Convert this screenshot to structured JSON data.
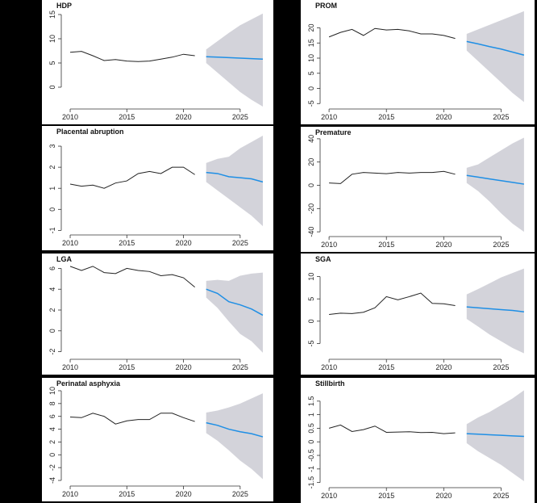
{
  "colors": {
    "observed": "#222222",
    "forecast": "#1f8fe5",
    "band": "#d3d3da",
    "axis": "#333333"
  },
  "chart_data": [
    {
      "type": "line",
      "title": "HDP",
      "x_ticks": [
        2010,
        2015,
        2020,
        2025
      ],
      "y_ticks": [
        0,
        5,
        10,
        15
      ],
      "xlim": [
        2009.5,
        2027.5
      ],
      "ylim": [
        -4,
        16
      ],
      "observed": {
        "x": [
          2010,
          2011,
          2012,
          2013,
          2014,
          2015,
          2016,
          2017,
          2018,
          2019,
          2020,
          2021
        ],
        "y": [
          7.2,
          7.4,
          6.5,
          5.5,
          5.7,
          5.4,
          5.3,
          5.4,
          5.8,
          6.2,
          6.8,
          6.5
        ]
      },
      "forecast": {
        "x": [
          2022,
          2023,
          2024,
          2025,
          2026,
          2027
        ],
        "y": [
          6.3,
          6.2,
          6.1,
          6.0,
          5.9,
          5.8
        ]
      },
      "band_upper": [
        7.8,
        9.5,
        11.2,
        12.8,
        14.0,
        15.2
      ],
      "band_lower": [
        5.0,
        3.0,
        1.0,
        -1.0,
        -2.6,
        -4.0
      ]
    },
    {
      "type": "line",
      "title": "PROM",
      "x_ticks": [
        2010,
        2015,
        2020,
        2025
      ],
      "y_ticks": [
        -5,
        0,
        5,
        10,
        15,
        20
      ],
      "xlim": [
        2009.5,
        2027.5
      ],
      "ylim": [
        -6,
        26
      ],
      "observed": {
        "x": [
          2010,
          2011,
          2012,
          2013,
          2014,
          2015,
          2016,
          2017,
          2018,
          2019,
          2020,
          2021
        ],
        "y": [
          17.0,
          18.5,
          19.5,
          17.5,
          19.8,
          19.3,
          19.5,
          19.0,
          18.0,
          18.0,
          17.5,
          16.5
        ]
      },
      "forecast": {
        "x": [
          2022,
          2023,
          2024,
          2025,
          2026,
          2027
        ],
        "y": [
          15.5,
          14.7,
          13.8,
          13.0,
          12.0,
          11.0
        ]
      },
      "band_upper": [
        18.0,
        19.5,
        21.0,
        22.5,
        24.0,
        25.5
      ],
      "band_lower": [
        12.5,
        9.0,
        5.5,
        2.0,
        -1.5,
        -4.5
      ]
    },
    {
      "type": "line",
      "title": "Placental abruption",
      "x_ticks": [
        2010,
        2015,
        2020,
        2025
      ],
      "y_ticks": [
        -1,
        0,
        1,
        2,
        3
      ],
      "xlim": [
        2009.5,
        2027.5
      ],
      "ylim": [
        -1.1,
        3.5
      ],
      "observed": {
        "x": [
          2010,
          2011,
          2012,
          2013,
          2014,
          2015,
          2016,
          2017,
          2018,
          2019,
          2020,
          2021
        ],
        "y": [
          1.2,
          1.1,
          1.15,
          1.0,
          1.25,
          1.35,
          1.7,
          1.8,
          1.7,
          2.0,
          2.0,
          1.65
        ]
      },
      "forecast": {
        "x": [
          2022,
          2023,
          2024,
          2025,
          2026,
          2027
        ],
        "y": [
          1.75,
          1.7,
          1.55,
          1.5,
          1.45,
          1.3
        ]
      },
      "band_upper": [
        2.2,
        2.4,
        2.5,
        2.9,
        3.2,
        3.5
      ],
      "band_lower": [
        1.3,
        0.9,
        0.5,
        0.1,
        -0.3,
        -0.8
      ]
    },
    {
      "type": "line",
      "title": "Premature",
      "x_ticks": [
        2010,
        2015,
        2020,
        2025
      ],
      "y_ticks": [
        -40,
        -20,
        0,
        20,
        40
      ],
      "xlim": [
        2009.5,
        2027.5
      ],
      "ylim": [
        -42,
        42
      ],
      "observed": {
        "x": [
          2010,
          2011,
          2012,
          2013,
          2014,
          2015,
          2016,
          2017,
          2018,
          2019,
          2020,
          2021
        ],
        "y": [
          2.0,
          1.5,
          9.5,
          11.0,
          10.5,
          10.0,
          11.0,
          10.5,
          11.0,
          11.0,
          12.0,
          9.5
        ]
      },
      "forecast": {
        "x": [
          2022,
          2023,
          2024,
          2025,
          2026,
          2027
        ],
        "y": [
          8.5,
          7.0,
          5.5,
          4.0,
          2.5,
          1.0
        ]
      },
      "band_upper": [
        15.0,
        18.0,
        24.0,
        30.0,
        36.0,
        41.0
      ],
      "band_lower": [
        2.0,
        -5.0,
        -14.0,
        -24.0,
        -33.0,
        -40.0
      ]
    },
    {
      "type": "line",
      "title": "LGA",
      "x_ticks": [
        2010,
        2015,
        2020,
        2025
      ],
      "y_ticks": [
        -2,
        0,
        2,
        4,
        6
      ],
      "xlim": [
        2009.5,
        2027.5
      ],
      "ylim": [
        -2.5,
        6.5
      ],
      "observed": {
        "x": [
          2010,
          2011,
          2012,
          2013,
          2014,
          2015,
          2016,
          2017,
          2018,
          2019,
          2020,
          2021
        ],
        "y": [
          6.2,
          5.8,
          6.2,
          5.6,
          5.5,
          6.0,
          5.8,
          5.7,
          5.3,
          5.4,
          5.1,
          4.2
        ]
      },
      "forecast": {
        "x": [
          2022,
          2023,
          2024,
          2025,
          2026,
          2027
        ],
        "y": [
          4.0,
          3.6,
          2.8,
          2.5,
          2.1,
          1.5
        ]
      },
      "band_upper": [
        4.8,
        4.9,
        4.8,
        5.3,
        5.5,
        5.6
      ],
      "band_lower": [
        3.2,
        2.2,
        0.9,
        -0.3,
        -1.0,
        -2.1
      ]
    },
    {
      "type": "line",
      "title": "SGA",
      "x_ticks": [
        2010,
        2015,
        2020,
        2025
      ],
      "y_ticks": [
        -5,
        0,
        5,
        10
      ],
      "xlim": [
        2009.5,
        2027.5
      ],
      "ylim": [
        -8,
        13
      ],
      "observed": {
        "x": [
          2010,
          2011,
          2012,
          2013,
          2014,
          2015,
          2016,
          2017,
          2018,
          2019,
          2020,
          2021
        ],
        "y": [
          1.5,
          1.8,
          1.7,
          2.0,
          3.0,
          5.5,
          4.8,
          5.5,
          6.3,
          4.0,
          3.9,
          3.5
        ]
      },
      "forecast": {
        "x": [
          2022,
          2023,
          2024,
          2025,
          2026,
          2027
        ],
        "y": [
          3.2,
          3.0,
          2.8,
          2.6,
          2.4,
          2.1
        ]
      },
      "band_upper": [
        6.0,
        7.2,
        8.5,
        9.8,
        10.8,
        11.8
      ],
      "band_lower": [
        0.5,
        -1.2,
        -3.0,
        -4.5,
        -6.0,
        -7.2
      ]
    },
    {
      "type": "line",
      "title": "Perinatal asphyxia",
      "x_ticks": [
        2010,
        2015,
        2020,
        2025
      ],
      "y_ticks": [
        -4,
        -2,
        0,
        2,
        4,
        6,
        8,
        10
      ],
      "xlim": [
        2009.5,
        2027.5
      ],
      "ylim": [
        -4.5,
        10.5
      ],
      "observed": {
        "x": [
          2010,
          2011,
          2012,
          2013,
          2014,
          2015,
          2016,
          2017,
          2018,
          2019,
          2020,
          2021
        ],
        "y": [
          5.9,
          5.8,
          6.5,
          6.0,
          4.8,
          5.3,
          5.5,
          5.5,
          6.5,
          6.5,
          5.8,
          5.2
        ]
      },
      "forecast": {
        "x": [
          2022,
          2023,
          2024,
          2025,
          2026,
          2027
        ],
        "y": [
          5.0,
          4.6,
          4.0,
          3.6,
          3.3,
          2.8
        ]
      },
      "band_upper": [
        6.6,
        6.9,
        7.4,
        8.0,
        8.8,
        9.6
      ],
      "band_lower": [
        3.4,
        2.2,
        0.7,
        -0.9,
        -2.2,
        -3.8
      ]
    },
    {
      "type": "line",
      "title": "Stillbirth",
      "x_ticks": [
        2010,
        2015,
        2020,
        2025
      ],
      "y_ticks": [
        -1.5,
        -1.0,
        -0.5,
        0.0,
        0.5,
        1.0,
        1.5
      ],
      "xlim": [
        2009.5,
        2027.5
      ],
      "ylim": [
        -1.6,
        2.0
      ],
      "observed": {
        "x": [
          2010,
          2011,
          2012,
          2013,
          2014,
          2015,
          2016,
          2017,
          2018,
          2019,
          2020,
          2021
        ],
        "y": [
          0.5,
          0.62,
          0.38,
          0.45,
          0.58,
          0.35,
          0.36,
          0.37,
          0.34,
          0.35,
          0.3,
          0.33
        ]
      },
      "forecast": {
        "x": [
          2022,
          2023,
          2024,
          2025,
          2026,
          2027
        ],
        "y": [
          0.3,
          0.28,
          0.26,
          0.24,
          0.22,
          0.2
        ]
      },
      "band_upper": [
        0.65,
        0.9,
        1.1,
        1.35,
        1.6,
        1.9
      ],
      "band_lower": [
        -0.05,
        -0.35,
        -0.6,
        -0.85,
        -1.15,
        -1.45
      ]
    }
  ]
}
